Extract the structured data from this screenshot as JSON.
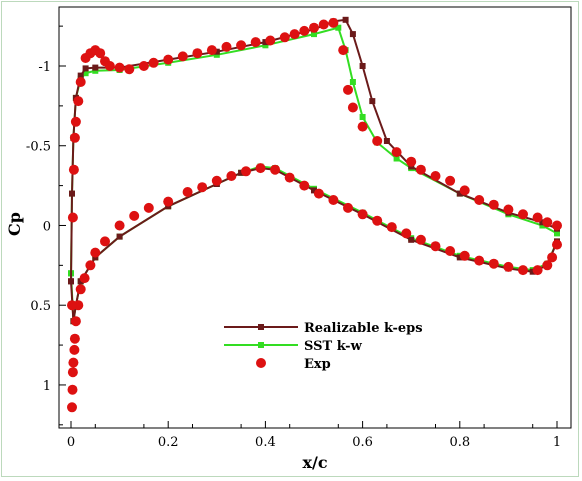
{
  "chart_data": {
    "type": "line",
    "xlabel": "x/c",
    "ylabel": "Cp",
    "xlim": [
      0,
      1
    ],
    "ylim": [
      1.27,
      -1.37
    ],
    "y_inverted": true,
    "x_ticks": [
      "0",
      "0.2",
      "0.4",
      "0.6",
      "0.8",
      "1"
    ],
    "x_tick_values": [
      0,
      0.2,
      0.4,
      0.6,
      0.8,
      1
    ],
    "y_ticks": [
      "-1",
      "-0.5",
      "0",
      "0.5",
      "1"
    ],
    "y_tick_values": [
      -1,
      -0.5,
      0,
      0.5,
      1
    ],
    "grid": false,
    "legend_position": "bottom-center",
    "series": [
      {
        "name": "Realizable k-eps",
        "color": "#6b1a1a",
        "marker": "square",
        "upper": [
          [
            0,
            0.35
          ],
          [
            0.002,
            -0.2
          ],
          [
            0.005,
            -0.55
          ],
          [
            0.01,
            -0.8
          ],
          [
            0.02,
            -0.94
          ],
          [
            0.03,
            -0.985
          ],
          [
            0.05,
            -0.99
          ],
          [
            0.1,
            -0.99
          ],
          [
            0.2,
            -1.04
          ],
          [
            0.3,
            -1.09
          ],
          [
            0.4,
            -1.15
          ],
          [
            0.5,
            -1.23
          ],
          [
            0.54,
            -1.28
          ],
          [
            0.565,
            -1.29
          ],
          [
            0.58,
            -1.2
          ],
          [
            0.6,
            -1.0
          ],
          [
            0.62,
            -0.78
          ],
          [
            0.65,
            -0.53
          ],
          [
            0.7,
            -0.37
          ],
          [
            0.8,
            -0.2
          ],
          [
            0.9,
            -0.08
          ],
          [
            0.97,
            -0.02
          ],
          [
            1.0,
            0.02
          ]
        ],
        "lower": [
          [
            0,
            0.35
          ],
          [
            0.005,
            0.6
          ],
          [
            0.01,
            0.5
          ],
          [
            0.02,
            0.35
          ],
          [
            0.05,
            0.2
          ],
          [
            0.1,
            0.07
          ],
          [
            0.2,
            -0.12
          ],
          [
            0.3,
            -0.26
          ],
          [
            0.35,
            -0.33
          ],
          [
            0.39,
            -0.36
          ],
          [
            0.42,
            -0.35
          ],
          [
            0.5,
            -0.22
          ],
          [
            0.6,
            -0.07
          ],
          [
            0.7,
            0.09
          ],
          [
            0.8,
            0.2
          ],
          [
            0.9,
            0.27
          ],
          [
            0.95,
            0.29
          ],
          [
            0.98,
            0.25
          ],
          [
            1.0,
            0.1
          ]
        ]
      },
      {
        "name": "SST k-w",
        "color": "#33dd22",
        "marker": "square",
        "upper": [
          [
            0,
            0.3
          ],
          [
            0.002,
            -0.2
          ],
          [
            0.005,
            -0.55
          ],
          [
            0.01,
            -0.8
          ],
          [
            0.02,
            -0.92
          ],
          [
            0.03,
            -0.955
          ],
          [
            0.05,
            -0.97
          ],
          [
            0.1,
            -0.975
          ],
          [
            0.2,
            -1.02
          ],
          [
            0.3,
            -1.07
          ],
          [
            0.4,
            -1.13
          ],
          [
            0.5,
            -1.2
          ],
          [
            0.55,
            -1.24
          ],
          [
            0.565,
            -1.1
          ],
          [
            0.58,
            -0.9
          ],
          [
            0.6,
            -0.68
          ],
          [
            0.63,
            -0.52
          ],
          [
            0.67,
            -0.42
          ],
          [
            0.7,
            -0.36
          ],
          [
            0.8,
            -0.2
          ],
          [
            0.9,
            -0.07
          ],
          [
            0.97,
            0.0
          ],
          [
            1.0,
            0.05
          ]
        ],
        "lower": [
          [
            0,
            0.3
          ],
          [
            0.005,
            0.6
          ],
          [
            0.01,
            0.5
          ],
          [
            0.02,
            0.35
          ],
          [
            0.05,
            0.2
          ],
          [
            0.1,
            0.07
          ],
          [
            0.2,
            -0.12
          ],
          [
            0.3,
            -0.26
          ],
          [
            0.35,
            -0.33
          ],
          [
            0.39,
            -0.37
          ],
          [
            0.42,
            -0.36
          ],
          [
            0.5,
            -0.23
          ],
          [
            0.6,
            -0.08
          ],
          [
            0.7,
            0.08
          ],
          [
            0.8,
            0.19
          ],
          [
            0.9,
            0.26
          ],
          [
            0.95,
            0.28
          ],
          [
            0.98,
            0.24
          ],
          [
            1.0,
            0.1
          ]
        ]
      },
      {
        "name": "Exp",
        "color": "#dd1111",
        "marker": "circle",
        "points": [
          [
            0.002,
            1.14
          ],
          [
            0.003,
            1.03
          ],
          [
            0.004,
            0.92
          ],
          [
            0.005,
            0.86
          ],
          [
            0.007,
            0.78
          ],
          [
            0.008,
            0.71
          ],
          [
            0.01,
            0.6
          ],
          [
            0.015,
            0.5
          ],
          [
            0.02,
            0.4
          ],
          [
            0.028,
            0.33
          ],
          [
            0.04,
            0.25
          ],
          [
            0.05,
            0.17
          ],
          [
            0.07,
            0.1
          ],
          [
            0.1,
            0.0
          ],
          [
            0.13,
            -0.06
          ],
          [
            0.16,
            -0.11
          ],
          [
            0.2,
            -0.15
          ],
          [
            0.24,
            -0.21
          ],
          [
            0.27,
            -0.24
          ],
          [
            0.3,
            -0.28
          ],
          [
            0.33,
            -0.31
          ],
          [
            0.36,
            -0.34
          ],
          [
            0.39,
            -0.36
          ],
          [
            0.42,
            -0.35
          ],
          [
            0.45,
            -0.3
          ],
          [
            0.48,
            -0.25
          ],
          [
            0.51,
            -0.2
          ],
          [
            0.54,
            -0.16
          ],
          [
            0.57,
            -0.11
          ],
          [
            0.6,
            -0.07
          ],
          [
            0.63,
            -0.03
          ],
          [
            0.66,
            0.01
          ],
          [
            0.69,
            0.05
          ],
          [
            0.72,
            0.09
          ],
          [
            0.75,
            0.13
          ],
          [
            0.78,
            0.16
          ],
          [
            0.81,
            0.19
          ],
          [
            0.84,
            0.22
          ],
          [
            0.87,
            0.24
          ],
          [
            0.9,
            0.26
          ],
          [
            0.93,
            0.28
          ],
          [
            0.96,
            0.28
          ],
          [
            0.98,
            0.25
          ],
          [
            0.99,
            0.2
          ],
          [
            1.0,
            0.12
          ],
          [
            0.002,
            0.5
          ],
          [
            0.004,
            -0.05
          ],
          [
            0.006,
            -0.35
          ],
          [
            0.008,
            -0.55
          ],
          [
            0.01,
            -0.65
          ],
          [
            0.015,
            -0.78
          ],
          [
            0.02,
            -0.9
          ],
          [
            0.03,
            -1.05
          ],
          [
            0.04,
            -1.08
          ],
          [
            0.05,
            -1.1
          ],
          [
            0.06,
            -1.08
          ],
          [
            0.07,
            -1.03
          ],
          [
            0.08,
            -1.0
          ],
          [
            0.1,
            -0.99
          ],
          [
            0.12,
            -0.98
          ],
          [
            0.15,
            -1.0
          ],
          [
            0.17,
            -1.02
          ],
          [
            0.2,
            -1.04
          ],
          [
            0.23,
            -1.06
          ],
          [
            0.26,
            -1.08
          ],
          [
            0.29,
            -1.1
          ],
          [
            0.32,
            -1.12
          ],
          [
            0.35,
            -1.13
          ],
          [
            0.38,
            -1.15
          ],
          [
            0.41,
            -1.16
          ],
          [
            0.44,
            -1.18
          ],
          [
            0.46,
            -1.2
          ],
          [
            0.48,
            -1.22
          ],
          [
            0.5,
            -1.24
          ],
          [
            0.52,
            -1.26
          ],
          [
            0.54,
            -1.27
          ],
          [
            0.56,
            -1.1
          ],
          [
            0.57,
            -0.85
          ],
          [
            0.58,
            -0.74
          ],
          [
            0.6,
            -0.62
          ],
          [
            0.63,
            -0.53
          ],
          [
            0.67,
            -0.46
          ],
          [
            0.7,
            -0.4
          ],
          [
            0.72,
            -0.35
          ],
          [
            0.75,
            -0.31
          ],
          [
            0.78,
            -0.28
          ],
          [
            0.81,
            -0.22
          ],
          [
            0.84,
            -0.16
          ],
          [
            0.87,
            -0.13
          ],
          [
            0.9,
            -0.1
          ],
          [
            0.93,
            -0.07
          ],
          [
            0.96,
            -0.05
          ],
          [
            0.98,
            -0.02
          ],
          [
            1.0,
            0.0
          ]
        ]
      }
    ]
  }
}
